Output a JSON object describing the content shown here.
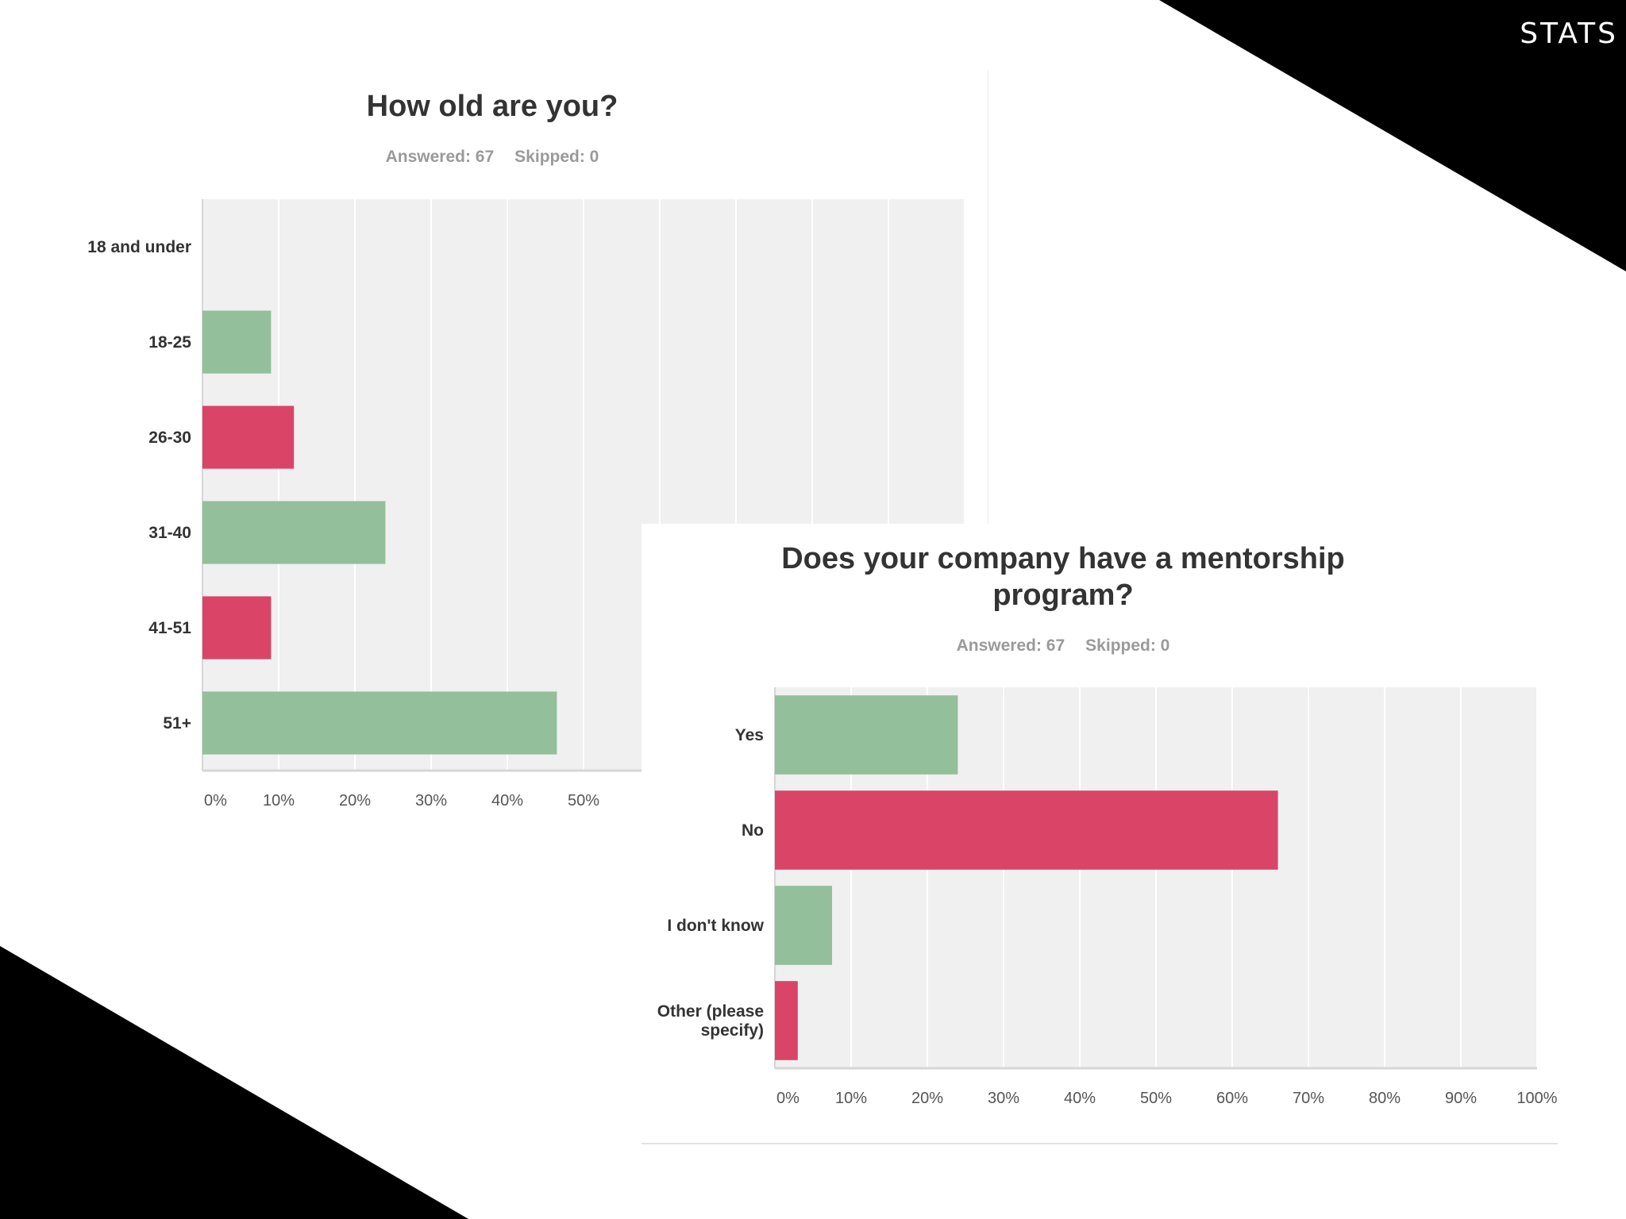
{
  "slide": {
    "title": "STATS"
  },
  "colors": {
    "green": "#93bf9a",
    "red": "#d94467",
    "plot_bg": "#f0f0f0",
    "grid": "#ffffff",
    "axis": "#d6d6d6",
    "label": "#333333",
    "tick": "#555555"
  },
  "chart_data": [
    {
      "type": "bar",
      "orientation": "horizontal",
      "title": "How old are you?",
      "answered": "Answered: 67",
      "skipped": "Skipped: 0",
      "categories": [
        "18 and under",
        "18-25",
        "26-30",
        "31-40",
        "41-51",
        "51+"
      ],
      "values": [
        0,
        9,
        12,
        24,
        9,
        46.5
      ],
      "xlim": [
        0,
        100
      ],
      "xticks": [
        "0%",
        "10%",
        "20%",
        "30%",
        "40%",
        "50%"
      ],
      "grid": true
    },
    {
      "type": "bar",
      "orientation": "horizontal",
      "title": "Does your company have a mentorship program?",
      "answered": "Answered: 67",
      "skipped": "Skipped: 0",
      "categories": [
        "Yes",
        "No",
        "I don't know",
        "Other (please specify)"
      ],
      "values": [
        24,
        66,
        7.5,
        3
      ],
      "xlim": [
        0,
        100
      ],
      "xticks": [
        "0%",
        "10%",
        "20%",
        "30%",
        "40%",
        "50%",
        "60%",
        "70%",
        "80%",
        "90%",
        "100%"
      ],
      "grid": true
    }
  ]
}
